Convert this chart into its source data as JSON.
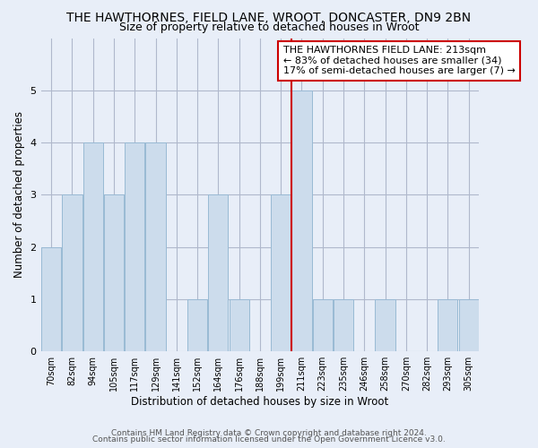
{
  "title": "THE HAWTHORNES, FIELD LANE, WROOT, DONCASTER, DN9 2BN",
  "subtitle": "Size of property relative to detached houses in Wroot",
  "xlabel": "Distribution of detached houses by size in Wroot",
  "ylabel": "Number of detached properties",
  "footer1": "Contains HM Land Registry data © Crown copyright and database right 2024.",
  "footer2": "Contains public sector information licensed under the Open Government Licence v3.0.",
  "categories": [
    "70sqm",
    "82sqm",
    "94sqm",
    "105sqm",
    "117sqm",
    "129sqm",
    "141sqm",
    "152sqm",
    "164sqm",
    "176sqm",
    "188sqm",
    "199sqm",
    "211sqm",
    "223sqm",
    "235sqm",
    "246sqm",
    "258sqm",
    "270sqm",
    "282sqm",
    "293sqm",
    "305sqm"
  ],
  "values": [
    2,
    3,
    4,
    3,
    4,
    4,
    0,
    1,
    3,
    1,
    0,
    3,
    5,
    1,
    1,
    0,
    1,
    0,
    0,
    1,
    1
  ],
  "bar_color": "#ccdcec",
  "bar_edge_color": "#99bad4",
  "highlight_index": 12,
  "ref_line_color": "#cc0000",
  "annotation_text": "THE HAWTHORNES FIELD LANE: 213sqm\n← 83% of detached houses are smaller (34)\n17% of semi-detached houses are larger (7) →",
  "annotation_box_color": "#ffffff",
  "annotation_box_edge": "#cc0000",
  "ylim": [
    0,
    6
  ],
  "yticks": [
    0,
    1,
    2,
    3,
    4,
    5
  ],
  "bg_color": "#e8eef8",
  "plot_bg_color": "#e8eef8",
  "grid_color": "#b0b8cc",
  "title_fontsize": 10,
  "subtitle_fontsize": 9,
  "axis_label_fontsize": 8.5,
  "tick_fontsize": 7,
  "ann_fontsize": 8
}
